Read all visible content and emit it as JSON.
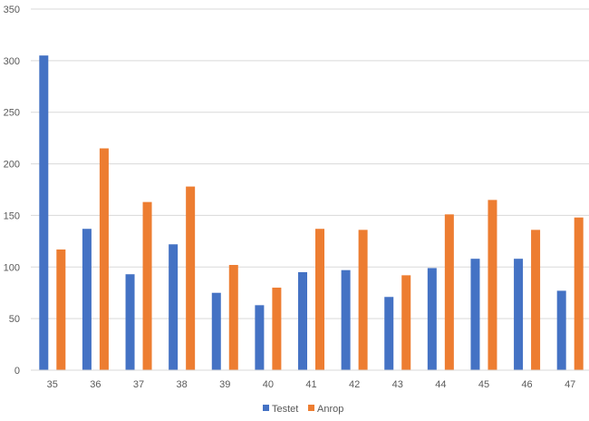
{
  "chart_data": {
    "type": "bar",
    "title": "",
    "xlabel": "",
    "ylabel": "",
    "ylim": [
      0,
      350
    ],
    "yticks": [
      0,
      50,
      100,
      150,
      200,
      250,
      300,
      350
    ],
    "grid": true,
    "legend_position": "bottom",
    "categories": [
      "35",
      "36",
      "37",
      "38",
      "39",
      "40",
      "41",
      "42",
      "43",
      "44",
      "45",
      "46",
      "47"
    ],
    "series": [
      {
        "name": "Testet",
        "color": "#4472C4",
        "values": [
          305,
          137,
          93,
          122,
          75,
          63,
          95,
          97,
          71,
          99,
          108,
          108,
          77
        ]
      },
      {
        "name": "Anrop",
        "color": "#ED7D31",
        "values": [
          117,
          215,
          163,
          178,
          102,
          80,
          137,
          136,
          92,
          151,
          165,
          136,
          148
        ]
      }
    ]
  }
}
